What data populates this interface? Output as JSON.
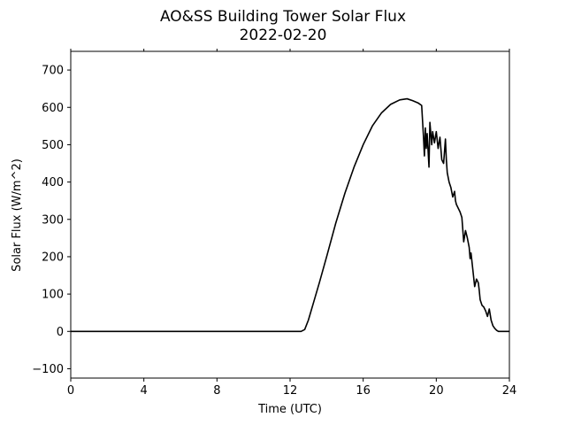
{
  "chart_data": {
    "type": "line",
    "title": "AO&SS Building Tower Solar Flux",
    "subtitle": "2022-02-20",
    "xlabel": "Time (UTC)",
    "ylabel": "Solar Flux (W/m^2)",
    "xlim": [
      0,
      24
    ],
    "ylim": [
      -125,
      750
    ],
    "xticks": [
      0,
      4,
      8,
      12,
      16,
      20,
      24
    ],
    "yticks": [
      -100,
      0,
      100,
      200,
      300,
      400,
      500,
      600,
      700
    ],
    "grid": false,
    "legend": "none",
    "series": [
      {
        "color": "#000000",
        "x": [
          0,
          12.6,
          12.8,
          13.0,
          13.3,
          13.6,
          14.0,
          14.5,
          15.0,
          15.5,
          16.0,
          16.5,
          17.0,
          17.5,
          18.0,
          18.4,
          18.7,
          19.0,
          19.2,
          19.3,
          19.35,
          19.4,
          19.45,
          19.5,
          19.6,
          19.65,
          19.75,
          19.8,
          19.9,
          20.0,
          20.1,
          20.2,
          20.3,
          20.4,
          20.5,
          20.55,
          20.6,
          20.7,
          20.8,
          20.9,
          21.0,
          21.05,
          21.1,
          21.2,
          21.3,
          21.4,
          21.5,
          21.6,
          21.7,
          21.8,
          21.85,
          21.9,
          22.0,
          22.1,
          22.2,
          22.3,
          22.35,
          22.4,
          22.5,
          22.6,
          22.7,
          22.8,
          22.9,
          23.0,
          23.1,
          23.2,
          23.3,
          23.4,
          23.5,
          23.6,
          23.7,
          23.8,
          24.0
        ],
        "y": [
          0,
          0,
          5,
          30,
          80,
          130,
          200,
          290,
          370,
          440,
          500,
          550,
          585,
          608,
          620,
          623,
          618,
          612,
          605,
          520,
          470,
          545,
          490,
          530,
          440,
          560,
          500,
          535,
          505,
          535,
          490,
          520,
          460,
          450,
          515,
          460,
          425,
          400,
          385,
          360,
          375,
          350,
          340,
          330,
          320,
          305,
          240,
          270,
          250,
          225,
          195,
          210,
          165,
          120,
          140,
          130,
          110,
          85,
          70,
          65,
          55,
          40,
          60,
          30,
          15,
          8,
          3,
          0,
          0,
          0,
          0,
          0,
          0
        ]
      }
    ]
  }
}
